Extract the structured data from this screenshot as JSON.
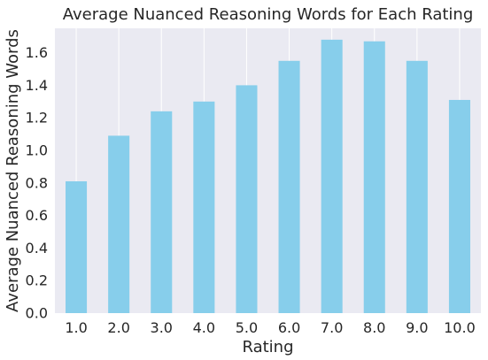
{
  "chart_data": {
    "type": "bar",
    "title": "Average Nuanced Reasoning Words for Each Rating",
    "xlabel": "Rating",
    "ylabel": "Average Nuanced Reasoning Words",
    "categories": [
      "1.0",
      "2.0",
      "3.0",
      "4.0",
      "5.0",
      "6.0",
      "7.0",
      "8.0",
      "9.0",
      "10.0"
    ],
    "values": [
      0.81,
      1.09,
      1.24,
      1.3,
      1.4,
      1.55,
      1.68,
      1.67,
      1.55,
      1.31
    ],
    "ylim": [
      0,
      1.75
    ],
    "yticks": [
      0.0,
      0.2,
      0.4,
      0.6,
      0.8,
      1.0,
      1.2,
      1.4,
      1.6
    ],
    "ytick_labels": [
      "0.0",
      "0.2",
      "0.4",
      "0.6",
      "0.8",
      "1.0",
      "1.2",
      "1.4",
      "1.6"
    ],
    "grid": true,
    "colors": {
      "bar": "#87ceeb",
      "plot_background": "#eaeaf2",
      "grid": "#ffffff",
      "text": "#262626"
    }
  }
}
